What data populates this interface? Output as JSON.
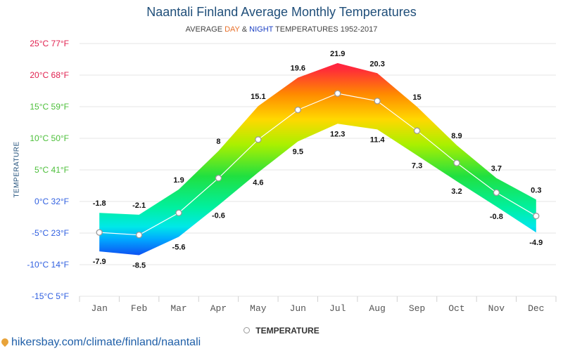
{
  "header": {
    "title": "Naantali Finland Average Monthly Temperatures",
    "subtitle_prefix": "AVERAGE ",
    "subtitle_day": "DAY",
    "subtitle_amp": " & ",
    "subtitle_night": "NIGHT",
    "subtitle_suffix": " TEMPERATURES 1952-2017"
  },
  "legend": {
    "label": "TEMPERATURE"
  },
  "source": {
    "text": "hikersbay.com/climate/finland/naantali"
  },
  "colors": {
    "title": "#1f4e79",
    "day": "#e8702a",
    "night": "#1a3fc4",
    "line": "#ffffff",
    "grid": "#e6e6e6"
  },
  "chart_data": {
    "type": "area",
    "title": "Naantali Finland Average Monthly Temperatures",
    "subtitle": "AVERAGE DAY & NIGHT TEMPERATURES 1952-2017",
    "ylabel": "TEMPERATURE",
    "categories": [
      "Jan",
      "Feb",
      "Mar",
      "Apr",
      "May",
      "Jun",
      "Jul",
      "Aug",
      "Sep",
      "Oct",
      "Nov",
      "Dec"
    ],
    "ylim": [
      -15,
      25
    ],
    "yticks": [
      {
        "value": 25,
        "label": "25°C 77°F",
        "color": "#e0204f"
      },
      {
        "value": 20,
        "label": "20°C 68°F",
        "color": "#e0204f"
      },
      {
        "value": 15,
        "label": "15°C 59°F",
        "color": "#4cbf3a"
      },
      {
        "value": 10,
        "label": "10°C 50°F",
        "color": "#4cbf3a"
      },
      {
        "value": 5,
        "label": "5°C 41°F",
        "color": "#4cbf3a"
      },
      {
        "value": 0,
        "label": "0°C 32°F",
        "color": "#2f5fe0"
      },
      {
        "value": -5,
        "label": "-5°C 23°F",
        "color": "#2f5fe0"
      },
      {
        "value": -10,
        "label": "-10°C 14°F",
        "color": "#2f5fe0"
      },
      {
        "value": -15,
        "label": "-15°C 5°F",
        "color": "#2f5fe0"
      }
    ],
    "grid": true,
    "legend_position": "bottom",
    "series": [
      {
        "name": "DAY",
        "values": [
          -1.8,
          -2.1,
          1.9,
          8,
          15.1,
          19.6,
          21.9,
          20.3,
          15,
          8.9,
          3.7,
          0.3
        ]
      },
      {
        "name": "NIGHT",
        "values": [
          -7.9,
          -8.5,
          -5.6,
          -0.6,
          4.6,
          9.5,
          12.3,
          11.4,
          7.3,
          3.2,
          -0.8,
          -4.9
        ]
      },
      {
        "name": "TEMPERATURE",
        "values": [
          -4.9,
          -5.3,
          -1.8,
          3.7,
          9.8,
          14.5,
          17.1,
          15.9,
          11.2,
          6.1,
          1.4,
          -2.3
        ]
      }
    ],
    "day_labels": [
      "-1.8",
      "-2.1",
      "1.9",
      "8",
      "15.1",
      "19.6",
      "21.9",
      "20.3",
      "15",
      "8.9",
      "3.7",
      "0.3"
    ],
    "night_labels": [
      "-7.9",
      "-8.5",
      "-5.6",
      "-0.6",
      "4.6",
      "9.5",
      "12.3",
      "11.4",
      "7.3",
      "3.2",
      "-0.8",
      "-4.9"
    ]
  }
}
